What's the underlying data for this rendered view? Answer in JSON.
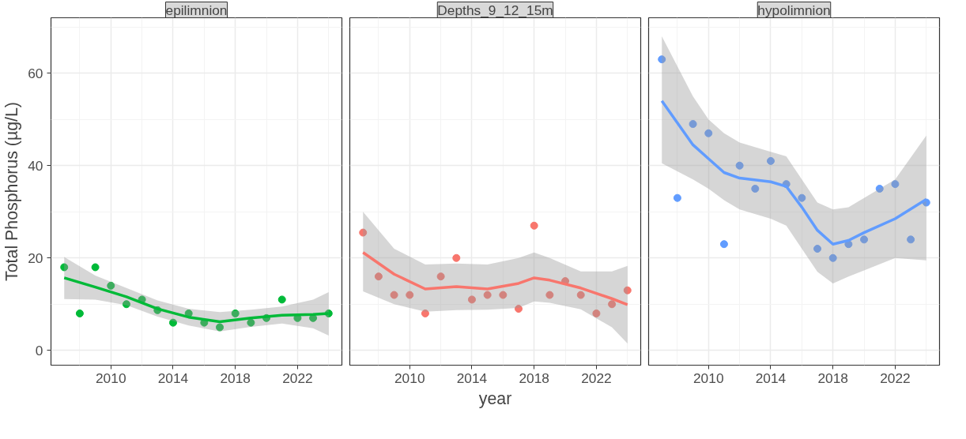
{
  "chart_data": [
    {
      "type": "scatter",
      "title": "epilimnion",
      "ylabel": "Total Phosphorus (µg/L)",
      "xlim": [
        2006.15,
        2024.85
      ],
      "ylim": [
        -3.2,
        72
      ],
      "xticks": [
        2010,
        2014,
        2018,
        2022
      ],
      "yticks": [
        0,
        20,
        40,
        60
      ],
      "grid": true,
      "x": [
        2007,
        2008,
        2009,
        2010,
        2011,
        2012,
        2013,
        2014,
        2015,
        2016,
        2017,
        2018,
        2019,
        2020,
        2021,
        2022,
        2023,
        2024
      ],
      "series": [
        {
          "marker": "circle",
          "color": "#00ba38",
          "values": [
            18,
            8,
            18,
            14,
            10,
            11,
            8.7,
            6,
            8,
            6,
            5,
            8,
            6,
            7,
            11,
            7,
            7,
            8
          ]
        },
        {
          "type": "line",
          "color": "#00ba38",
          "x": [
            2007,
            2009,
            2011,
            2013,
            2015,
            2017,
            2019,
            2021,
            2023,
            2024
          ],
          "values": [
            15.7,
            13.7,
            11.6,
            9.0,
            7.2,
            6.2,
            7.0,
            7.6,
            7.8,
            8.0
          ],
          "lower": [
            11.1,
            11.0,
            9.8,
            7.3,
            5.4,
            4.1,
            5.1,
            5.8,
            4.8,
            3.2
          ],
          "upper": [
            20.2,
            16.2,
            13.5,
            10.8,
            9.0,
            8.3,
            8.8,
            9.5,
            11.0,
            12.6
          ]
        }
      ]
    },
    {
      "type": "scatter",
      "title": "Depths_9_12_15m",
      "xlabel": "year",
      "tick_labels": "x",
      "xlim": [
        2006.15,
        2024.85
      ],
      "ylim": [
        -3.2,
        72
      ],
      "xticks": [
        2010,
        2014,
        2018,
        2022
      ],
      "yticks": [
        0,
        20,
        40,
        60
      ],
      "grid": true,
      "x": [
        2007,
        2008,
        2009,
        2010,
        2011,
        2012,
        2013,
        2014,
        2015,
        2016,
        2017,
        2018,
        2019,
        2020,
        2021,
        2022,
        2023,
        2024
      ],
      "series": [
        {
          "marker": "circle",
          "color": "#f8766d",
          "values": [
            25.5,
            16,
            12,
            12,
            8,
            16,
            20,
            11,
            12,
            12,
            9,
            27,
            12,
            15,
            12,
            8,
            10,
            13
          ]
        },
        {
          "type": "line",
          "color": "#f8766d",
          "x": [
            2007,
            2009,
            2011,
            2013,
            2015,
            2017,
            2018,
            2019,
            2021,
            2023,
            2024
          ],
          "values": [
            21.2,
            16.5,
            13.3,
            13.8,
            13.3,
            14.5,
            15.7,
            15.2,
            13.5,
            11.2,
            9.9
          ],
          "lower": [
            12.8,
            10,
            8.4,
            8.7,
            8.8,
            9.2,
            10.6,
            10.3,
            8.9,
            5,
            1.5
          ],
          "upper": [
            30,
            22,
            18.6,
            18.8,
            18.6,
            20,
            21.2,
            20,
            17.1,
            17.1,
            18.3
          ]
        }
      ]
    },
    {
      "type": "scatter",
      "title": "hypolimnion",
      "tick_labels": "x",
      "xlim": [
        2006.15,
        2024.85
      ],
      "ylim": [
        -3.2,
        72
      ],
      "xticks": [
        2010,
        2014,
        2018,
        2022
      ],
      "yticks": [
        0,
        20,
        40,
        60
      ],
      "grid": true,
      "x": [
        2007,
        2008,
        2009,
        2010,
        2011,
        2012,
        2013,
        2014,
        2015,
        2016,
        2017,
        2018,
        2019,
        2020,
        2021,
        2022,
        2023,
        2024
      ],
      "series": [
        {
          "marker": "circle",
          "color": "#619cff",
          "values": [
            63,
            33,
            49,
            47,
            23,
            40,
            35,
            41,
            36,
            33,
            22,
            20,
            23,
            24,
            35,
            36,
            24,
            32
          ]
        },
        {
          "type": "line",
          "color": "#619cff",
          "x": [
            2007,
            2009,
            2010,
            2011,
            2012,
            2014,
            2015,
            2016,
            2017,
            2018,
            2019,
            2020,
            2022,
            2024
          ],
          "values": [
            54,
            44.5,
            41.5,
            38.5,
            37.3,
            36.5,
            35.5,
            31,
            26,
            23,
            23.8,
            25.5,
            28.5,
            32.7
          ],
          "lower": [
            40.5,
            37,
            35,
            32.5,
            30.5,
            28.5,
            27,
            22,
            17,
            14.5,
            16,
            17.3,
            20,
            19.5
          ],
          "upper": [
            68,
            55,
            50,
            47,
            45,
            43,
            42,
            37,
            32,
            30.5,
            31,
            33,
            37,
            46.5
          ]
        }
      ]
    }
  ]
}
